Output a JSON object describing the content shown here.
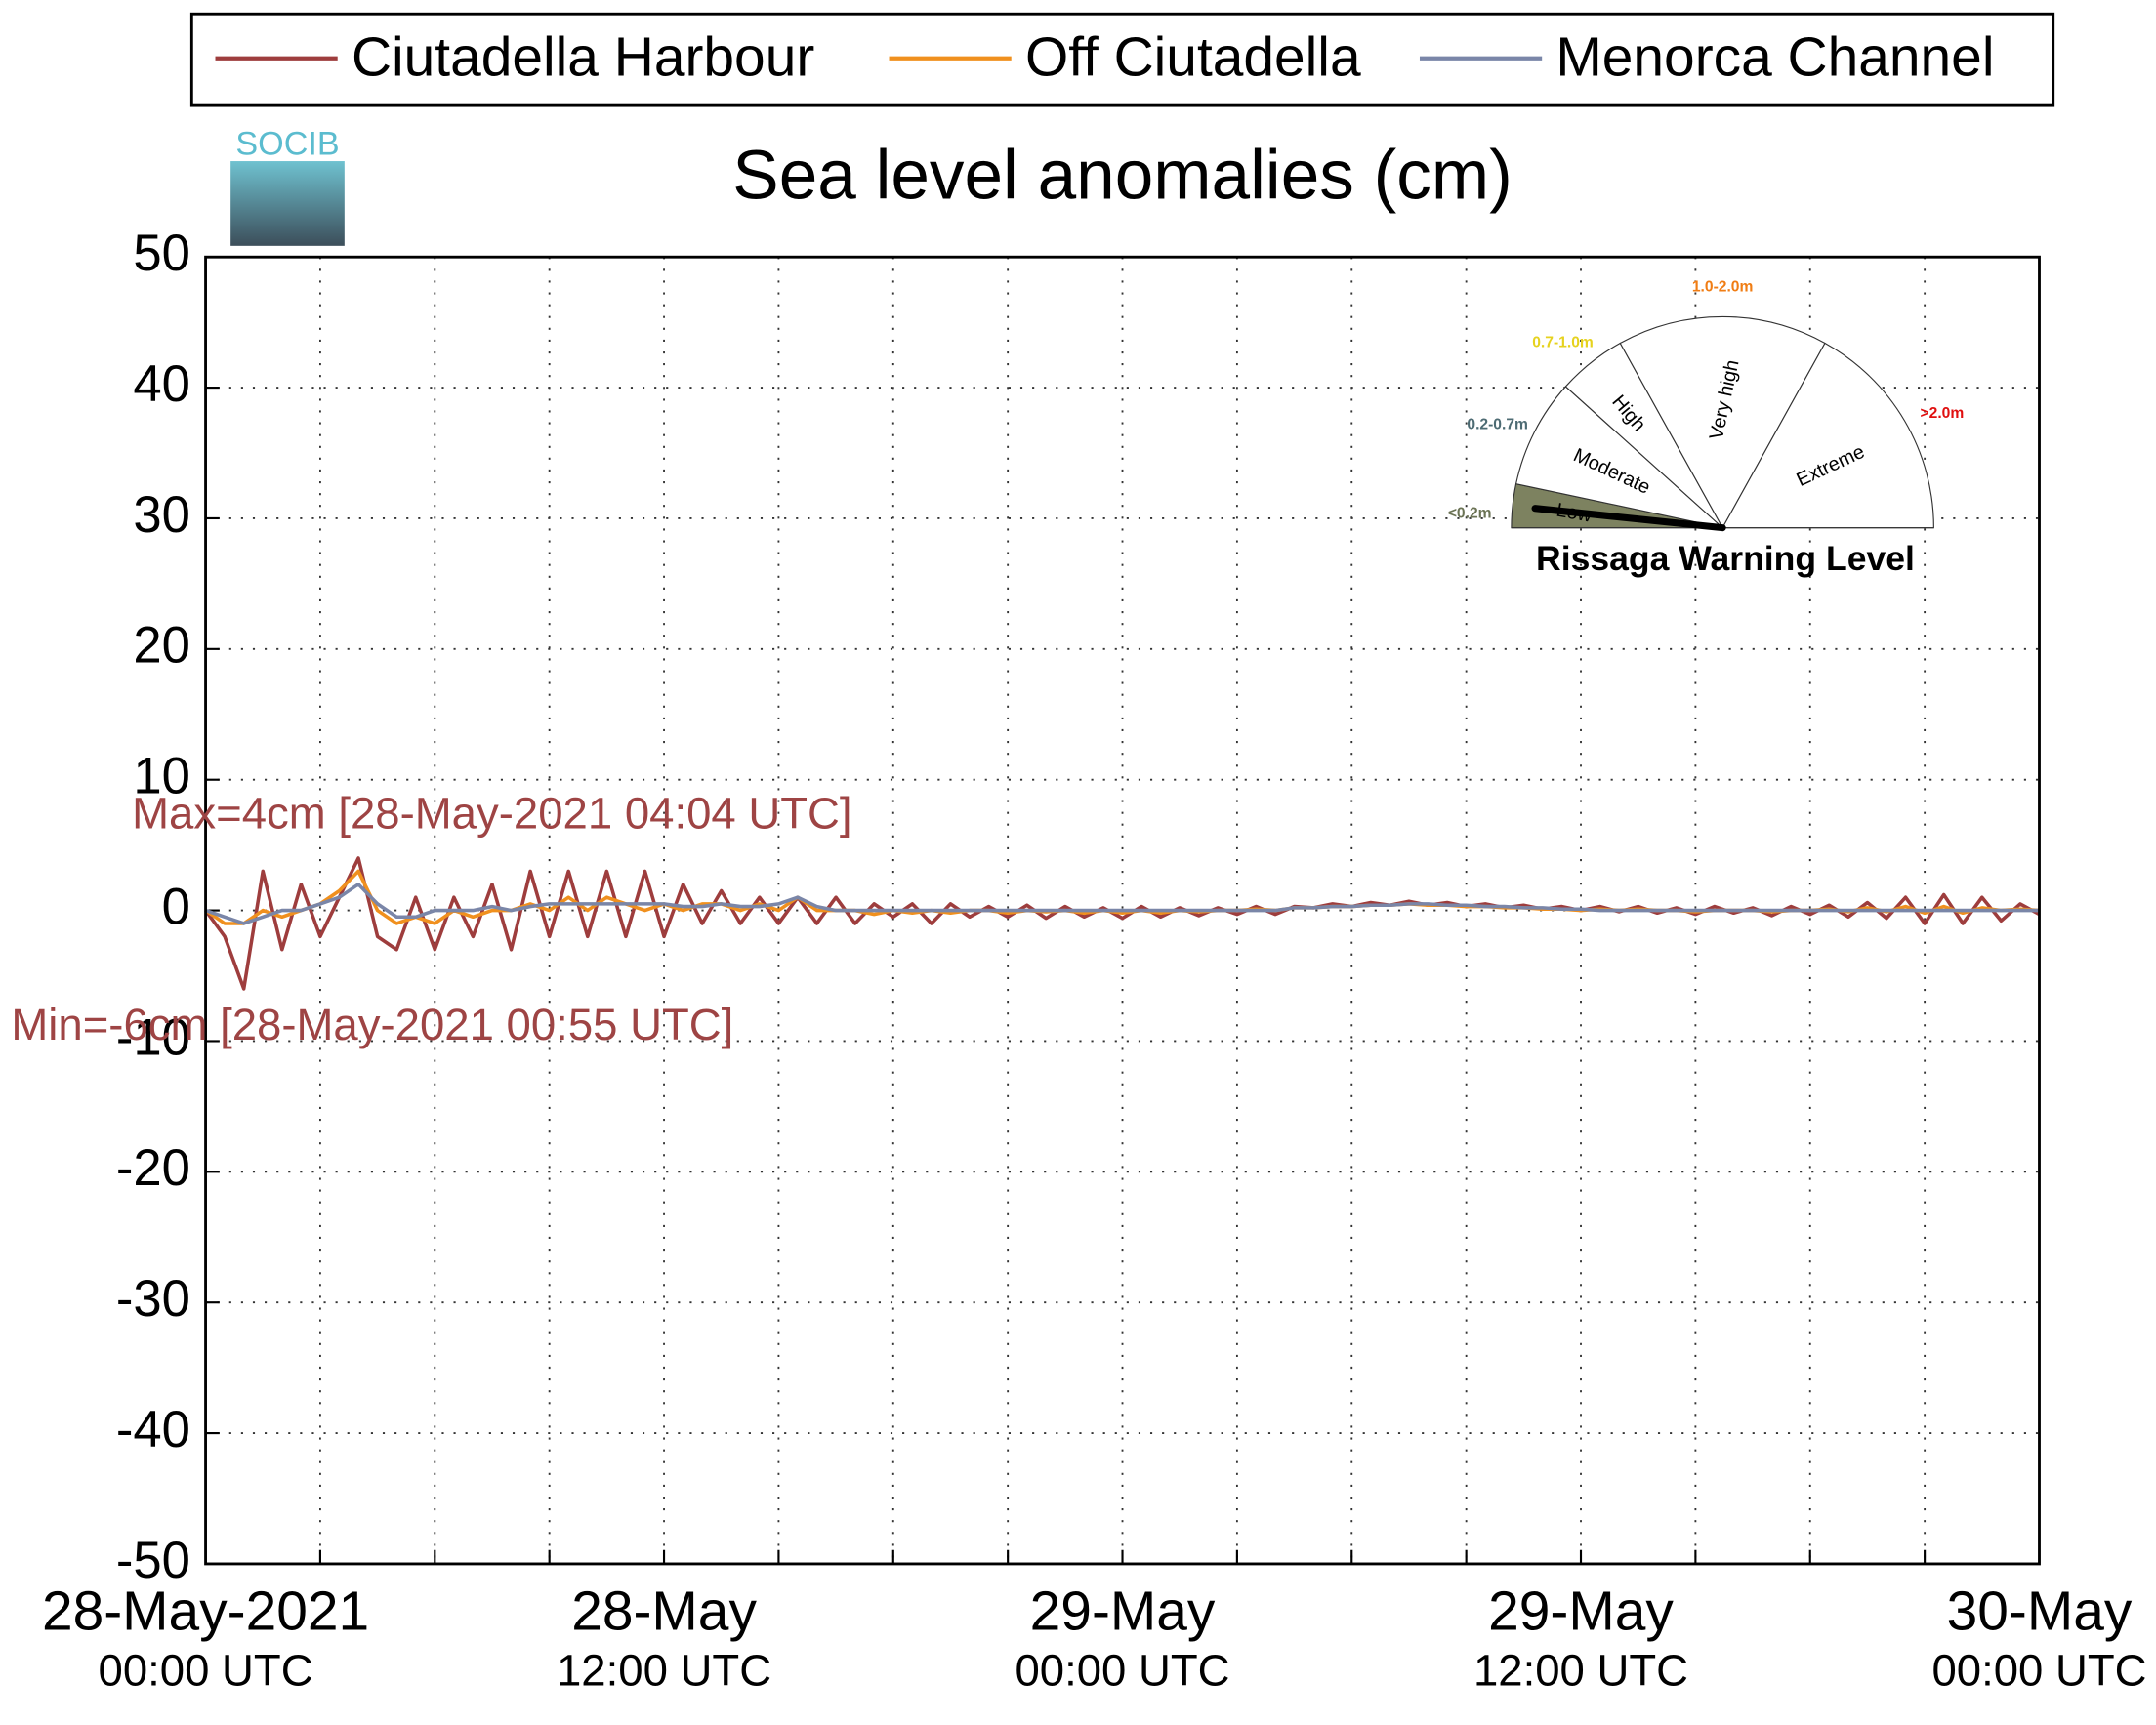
{
  "chart_data": {
    "type": "line",
    "title": "Sea level anomalies (cm)",
    "logo_text": "SOCIB",
    "x": [
      0,
      0.5,
      1,
      1.5,
      2,
      2.5,
      3,
      3.5,
      4,
      4.5,
      5,
      5.5,
      6,
      6.5,
      7,
      7.5,
      8,
      8.5,
      9,
      9.5,
      10,
      10.5,
      11,
      11.5,
      12,
      12.5,
      13,
      13.5,
      14,
      14.5,
      15,
      15.5,
      16,
      16.5,
      17,
      17.5,
      18,
      18.5,
      19,
      19.5,
      20,
      20.5,
      21,
      21.5,
      22,
      22.5,
      23,
      23.5,
      24,
      24.5,
      25,
      25.5,
      26,
      26.5,
      27,
      27.5,
      28,
      28.5,
      29,
      29.5,
      30,
      30.5,
      31,
      31.5,
      32,
      32.5,
      33,
      33.5,
      34,
      34.5,
      35,
      35.5,
      36,
      36.5,
      37,
      37.5,
      38,
      38.5,
      39,
      39.5,
      40,
      40.5,
      41,
      41.5,
      42,
      42.5,
      43,
      43.5,
      44,
      44.5,
      45,
      45.5,
      46,
      46.5,
      47,
      47.5,
      48
    ],
    "xlim": [
      0,
      48
    ],
    "xticks": [
      {
        "value": 0,
        "label": [
          "28-May-2021",
          "00:00 UTC"
        ]
      },
      {
        "value": 12,
        "label": [
          "28-May",
          "12:00 UTC"
        ]
      },
      {
        "value": 24,
        "label": [
          "29-May",
          "00:00 UTC"
        ]
      },
      {
        "value": 36,
        "label": [
          "29-May",
          "12:00 UTC"
        ]
      },
      {
        "value": 48,
        "label": [
          "30-May",
          "00:00 UTC"
        ]
      }
    ],
    "xminorticks": [
      3,
      6,
      9,
      15,
      18,
      21,
      27,
      30,
      33,
      39,
      42,
      45
    ],
    "ylim": [
      -50,
      50
    ],
    "yticks": [
      -50,
      -40,
      -30,
      -20,
      -10,
      0,
      10,
      20,
      30,
      40,
      50
    ],
    "grid": true,
    "legend": "top",
    "series": [
      {
        "name": "Ciutadella Harbour",
        "color": "#9e3d3d",
        "values": [
          0,
          -2,
          -6,
          3,
          -3,
          2,
          -2,
          1,
          4,
          -2,
          -3,
          1,
          -3,
          1,
          -2,
          2,
          -3,
          3,
          -2,
          3,
          -2,
          3,
          -2,
          3,
          -2,
          2,
          -1,
          1.5,
          -1,
          1,
          -1,
          1,
          -1,
          1,
          -1,
          0.5,
          -0.5,
          0.5,
          -1,
          0.5,
          -0.5,
          0.3,
          -0.5,
          0.4,
          -0.6,
          0.3,
          -0.5,
          0.2,
          -0.6,
          0.3,
          -0.5,
          0.2,
          -0.4,
          0.2,
          -0.3,
          0.3,
          -0.3,
          0.3,
          0.2,
          0.5,
          0.3,
          0.6,
          0.4,
          0.7,
          0.4,
          0.6,
          0.3,
          0.5,
          0.2,
          0.4,
          0.1,
          0.3,
          0,
          0.3,
          -0.1,
          0.3,
          -0.2,
          0.2,
          -0.3,
          0.3,
          -0.2,
          0.2,
          -0.4,
          0.3,
          -0.3,
          0.4,
          -0.5,
          0.6,
          -0.6,
          1,
          -1,
          1.2,
          -1,
          1,
          -0.8,
          0.5,
          -0.3
        ]
      },
      {
        "name": "Off Ciutadella",
        "color": "#f0901e",
        "values": [
          0,
          -1,
          -1,
          0,
          -0.5,
          0,
          0.5,
          1.5,
          3,
          0,
          -1,
          -0.5,
          -1,
          0,
          -0.5,
          0,
          0,
          0.5,
          0,
          1,
          0,
          1,
          0.5,
          0,
          0.5,
          0,
          0.5,
          0.5,
          0,
          0.5,
          0,
          1,
          0,
          0,
          0,
          -0.3,
          0,
          -0.2,
          0,
          -0.2,
          0,
          0,
          -0.2,
          0,
          -0.1,
          0,
          -0.2,
          0,
          -0.2,
          0,
          -0.2,
          0,
          -0.1,
          0,
          0,
          0.1,
          0,
          0.2,
          0.2,
          0.3,
          0.3,
          0.4,
          0.4,
          0.5,
          0.4,
          0.4,
          0.3,
          0.3,
          0.2,
          0.2,
          0.1,
          0.1,
          0,
          0.1,
          0,
          0.1,
          0,
          0,
          -0.1,
          0,
          0,
          0,
          -0.1,
          0,
          0,
          0.1,
          -0.1,
          0.2,
          -0.1,
          0.3,
          -0.2,
          0.3,
          -0.2,
          0.2,
          0,
          0.1,
          0
        ]
      },
      {
        "name": "Menorca Channel",
        "color": "#7a86a8",
        "values": [
          0,
          -0.5,
          -1,
          -0.5,
          0,
          0,
          0.5,
          1,
          2,
          0.5,
          -0.5,
          -0.5,
          0,
          0,
          0,
          0.3,
          0,
          0.3,
          0.5,
          0.5,
          0.5,
          0.5,
          0.5,
          0.5,
          0.5,
          0.3,
          0.3,
          0.5,
          0.3,
          0.3,
          0.5,
          1,
          0.3,
          0,
          0,
          0,
          0,
          0,
          0,
          0,
          0,
          0,
          0,
          0,
          0,
          0,
          0,
          0,
          0,
          0,
          0,
          0,
          0,
          0,
          0,
          0,
          0,
          0.2,
          0.2,
          0.3,
          0.3,
          0.4,
          0.4,
          0.5,
          0.5,
          0.4,
          0.4,
          0.3,
          0.3,
          0.2,
          0.2,
          0.1,
          0.1,
          0,
          0,
          0,
          0,
          0,
          0,
          0,
          0,
          0,
          0,
          0,
          0,
          0,
          0,
          0,
          0,
          0,
          0,
          0,
          0,
          0,
          0,
          0,
          0
        ]
      }
    ],
    "annotations": [
      "Max=4cm [28-May-2021 04:04 UTC]",
      "Min=-6cm [28-May-2021 00:55 UTC]"
    ],
    "annotation_color": "#9e4444",
    "gauge": {
      "title": "Rissaga Warning Level",
      "sectors": [
        {
          "name": "Low",
          "range": "<0.2m",
          "range_color": "#6b7355"
        },
        {
          "name": "Moderate",
          "range": "0.2-0.7m",
          "range_color": "#4d6b73"
        },
        {
          "name": "High",
          "range": "0.7-1.0m",
          "range_color": "#e6d21e"
        },
        {
          "name": "Very high",
          "range": "1.0-2.0m",
          "range_color": "#f07d14"
        },
        {
          "name": "Extreme",
          "range": ">2.0m",
          "range_color": "#e01010"
        }
      ]
    }
  }
}
